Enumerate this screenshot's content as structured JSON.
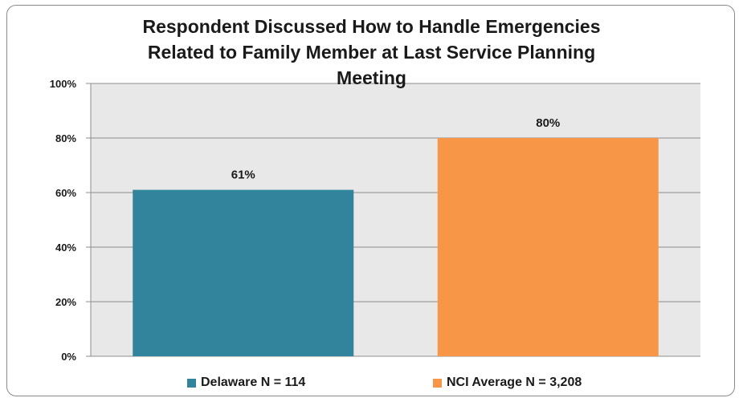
{
  "chart_data": {
    "type": "bar",
    "title_lines": [
      "Respondent Discussed How to Handle Emergencies",
      "Related to Family Member at Last Service Planning",
      "Meeting"
    ],
    "categories": [
      "Delaware N = 114",
      "NCI Average N = 3,208"
    ],
    "values": [
      61,
      80
    ],
    "data_labels": [
      "61%",
      "80%"
    ],
    "colors": [
      "#31849b",
      "#f79646"
    ],
    "ylim": [
      0,
      100
    ],
    "yticks": [
      "0%",
      "20%",
      "40%",
      "60%",
      "80%",
      "100%"
    ],
    "grid": true,
    "legend_position": "bottom"
  }
}
